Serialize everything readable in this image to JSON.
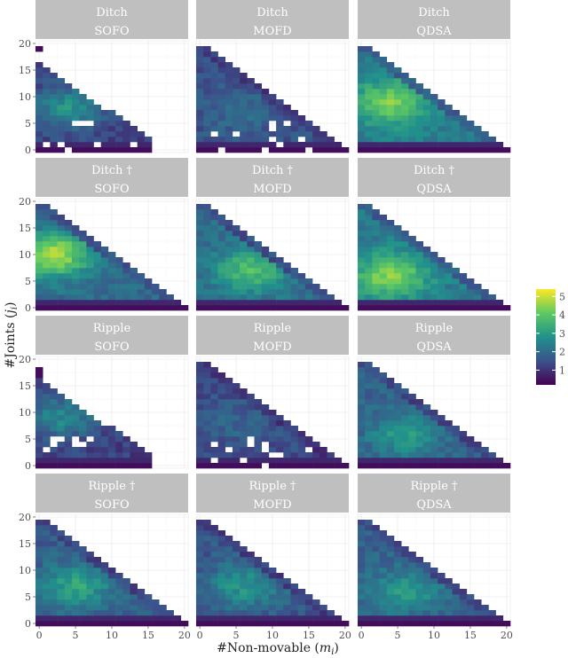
{
  "chart_data": {
    "type": "heatmap",
    "xlabel": "#Non-movable (m_i)",
    "ylabel": "#Joints (j_i)",
    "xlim": [
      0,
      20
    ],
    "ylim": [
      0,
      20
    ],
    "x_ticks": [
      0,
      5,
      10,
      15,
      20
    ],
    "y_ticks": [
      0,
      5,
      10,
      15,
      20
    ],
    "grid": true,
    "legend": {
      "position": "right",
      "ticks": [
        1,
        2,
        3,
        4,
        5
      ],
      "min": 0.2,
      "max": 5.4,
      "colormap": [
        "#440154",
        "#3b528b",
        "#21918c",
        "#5ec962",
        "#fde725"
      ]
    },
    "rows": [
      "Ditch",
      "Ditch †",
      "Ripple",
      "Ripple †"
    ],
    "columns": [
      "SOFO",
      "MOFD",
      "QDSA"
    ],
    "panels": [
      {
        "row": "Ditch",
        "column": "SOFO",
        "max_m": 15,
        "base": 1.2,
        "peak": 2.8,
        "peak_x": 4,
        "peak_y": 8,
        "holes": 8,
        "extra": [
          [
            0,
            19
          ]
        ]
      },
      {
        "row": "Ditch",
        "column": "MOFD",
        "max_m": 20,
        "base": 1.5,
        "peak": 2.0,
        "peak_x": 6,
        "peak_y": 7,
        "holes": 11,
        "extra": []
      },
      {
        "row": "Ditch",
        "column": "QDSA",
        "max_m": 20,
        "base": 2.4,
        "peak": 4.3,
        "peak_x": 4,
        "peak_y": 9,
        "holes": 0,
        "extra": []
      },
      {
        "row": "Ditch †",
        "column": "SOFO",
        "max_m": 20,
        "base": 2.0,
        "peak": 4.8,
        "peak_x": 2,
        "peak_y": 10,
        "holes": 0,
        "extra": []
      },
      {
        "row": "Ditch †",
        "column": "MOFD",
        "max_m": 20,
        "base": 2.0,
        "peak": 3.8,
        "peak_x": 7,
        "peak_y": 7,
        "holes": 0,
        "extra": []
      },
      {
        "row": "Ditch †",
        "column": "QDSA",
        "max_m": 20,
        "base": 2.3,
        "peak": 4.5,
        "peak_x": 4,
        "peak_y": 6,
        "holes": 0,
        "extra": []
      },
      {
        "row": "Ripple",
        "column": "SOFO",
        "max_m": 15,
        "base": 1.2,
        "peak": 2.6,
        "peak_x": 3,
        "peak_y": 9,
        "holes": 8,
        "extra": [
          [
            0,
            17
          ],
          [
            0,
            18
          ]
        ]
      },
      {
        "row": "Ripple",
        "column": "MOFD",
        "max_m": 20,
        "base": 1.4,
        "peak": 1.9,
        "peak_x": 5,
        "peak_y": 8,
        "holes": 12,
        "extra": []
      },
      {
        "row": "Ripple",
        "column": "QDSA",
        "max_m": 20,
        "base": 1.8,
        "peak": 3.0,
        "peak_x": 6,
        "peak_y": 6,
        "holes": 0,
        "extra": []
      },
      {
        "row": "Ripple †",
        "column": "SOFO",
        "max_m": 20,
        "base": 1.7,
        "peak": 3.2,
        "peak_x": 5,
        "peak_y": 7,
        "holes": 0,
        "extra": []
      },
      {
        "row": "Ripple †",
        "column": "MOFD",
        "max_m": 20,
        "base": 1.6,
        "peak": 2.9,
        "peak_x": 6,
        "peak_y": 7,
        "holes": 0,
        "extra": []
      },
      {
        "row": "Ripple †",
        "column": "QDSA",
        "max_m": 20,
        "base": 1.8,
        "peak": 3.0,
        "peak_x": 6,
        "peak_y": 6,
        "holes": 0,
        "extra": []
      }
    ]
  }
}
